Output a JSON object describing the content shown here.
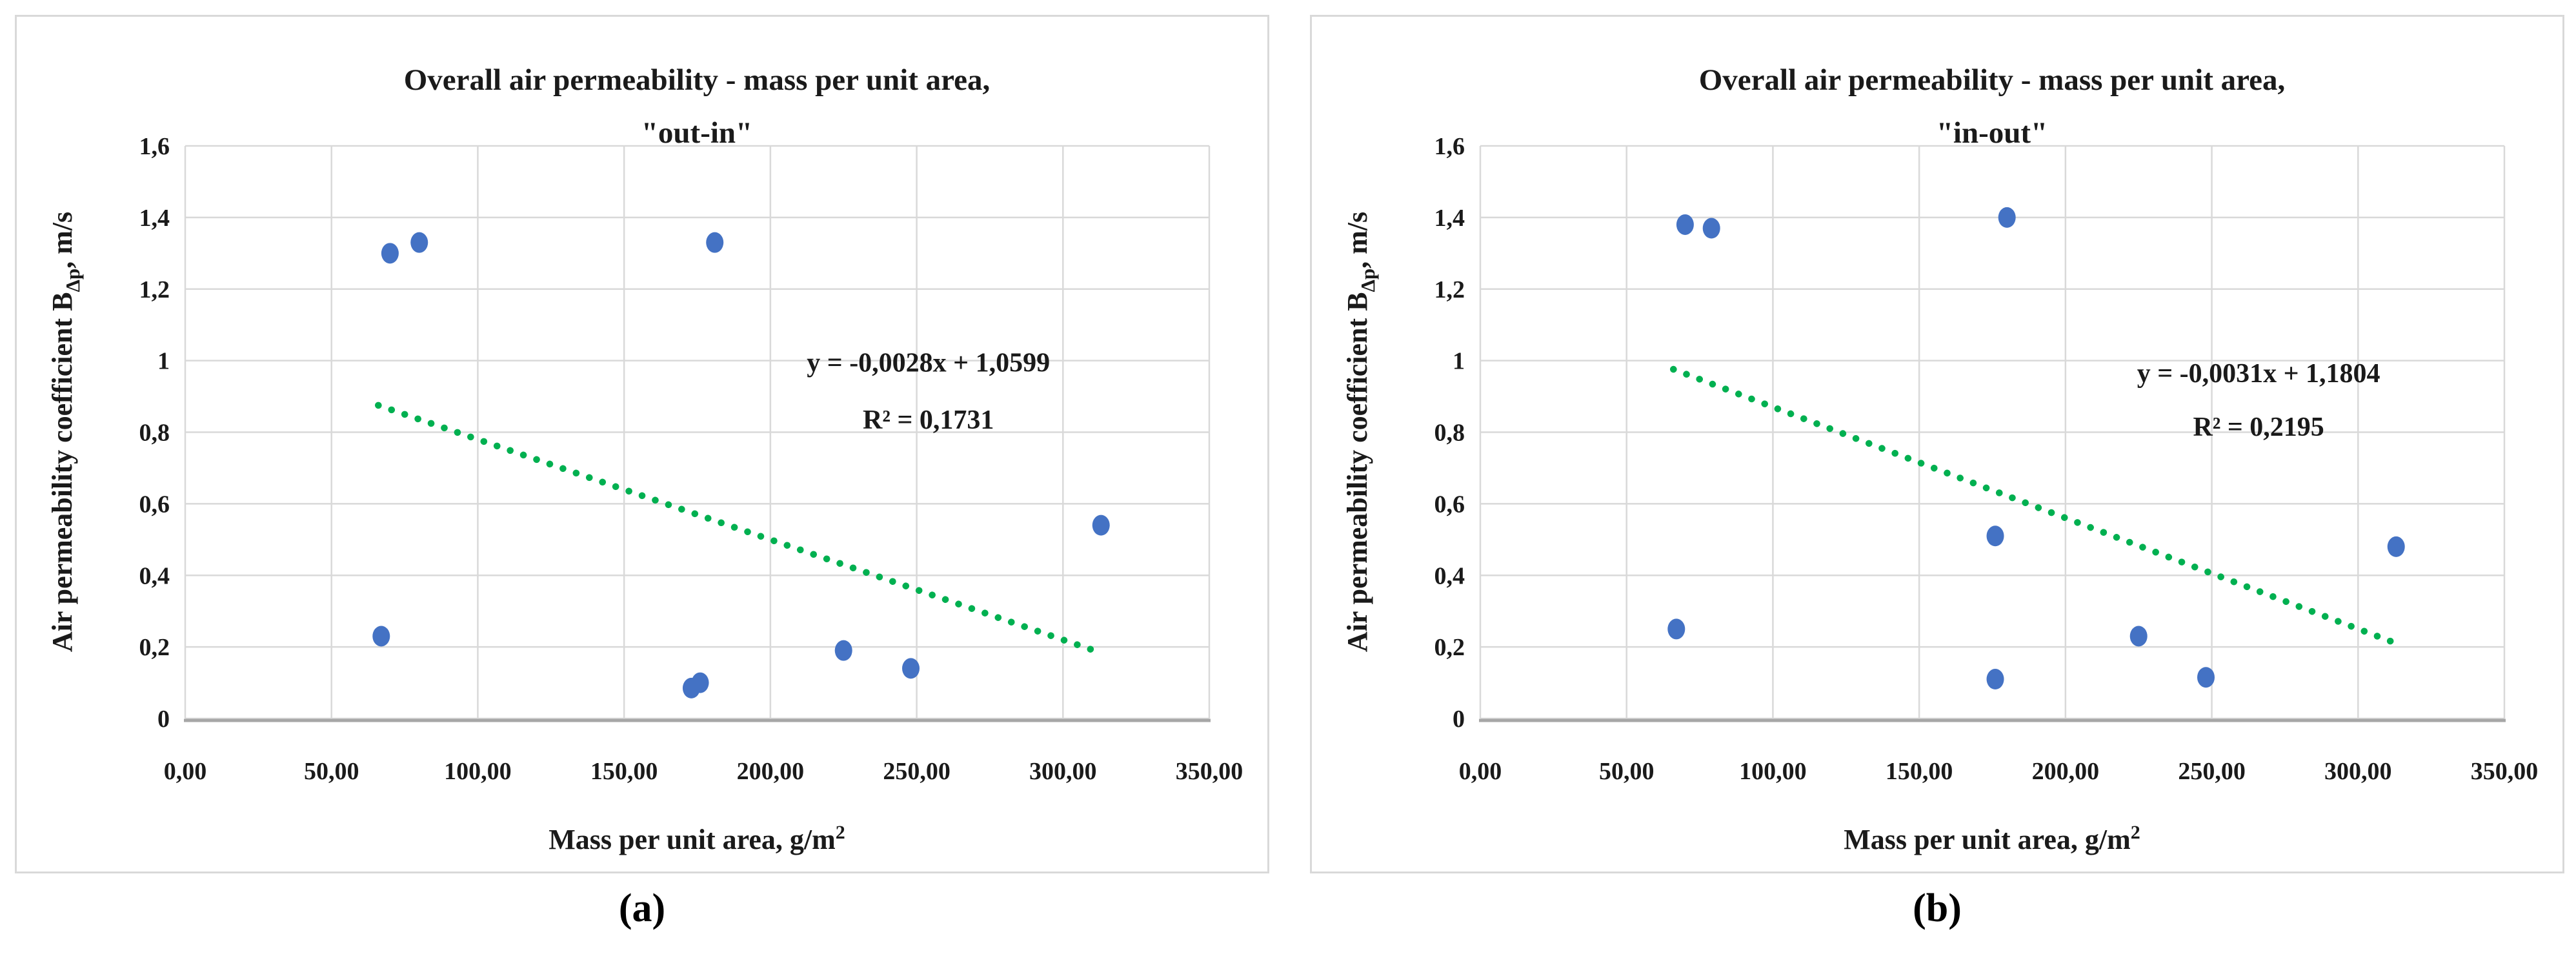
{
  "figure": {
    "background": "#FFFFFF",
    "panel_border_color": "#D9D9D9",
    "grid_color": "#D9D9D9",
    "axis_line_color": "#A6A6A6",
    "text_color": "#1A1A1A"
  },
  "captions": {
    "a": "(a)",
    "b": "(b)"
  },
  "chart_data": [
    {
      "panel": "a",
      "type": "scatter",
      "title": "Overall air permeability - mass per unit area,",
      "subtitle": "\"out-in\"",
      "xlabel_main": "Mass per unit area, g/m",
      "xlabel_sup": "2",
      "ylabel_prefix": "Air permeability coefficient B",
      "ylabel_sub": "Δp",
      "ylabel_suffix": ", m/s",
      "xlim": [
        0,
        350
      ],
      "ylim": [
        0,
        1.6
      ],
      "x_tick_step": 50,
      "y_tick_step": 0.2,
      "x_tick_labels": [
        "0,00",
        "50,00",
        "100,00",
        "150,00",
        "200,00",
        "250,00",
        "300,00",
        "350,00"
      ],
      "y_tick_labels": [
        "0",
        "0,2",
        "0,4",
        "0,6",
        "0,8",
        "1",
        "1,2",
        "1,4",
        "1,6"
      ],
      "grid": true,
      "legend": "none",
      "marker_color": "#4472C4",
      "points": [
        [
          70,
          1.3
        ],
        [
          80,
          1.33
        ],
        [
          181,
          1.33
        ],
        [
          313,
          0.54
        ],
        [
          67,
          0.23
        ],
        [
          225,
          0.19
        ],
        [
          248,
          0.14
        ],
        [
          173,
          0.085
        ],
        [
          176,
          0.1
        ]
      ],
      "trendline": {
        "equation_label": "y = -0,0028x + 1,0599",
        "r2_label": "R² = 0,1731",
        "slope": -0.0028,
        "intercept": 1.0599,
        "x_start": 66,
        "x_end": 312,
        "style": "dotted",
        "color": "#00B050",
        "label_x": 254,
        "label_y1": 0.97,
        "label_y2": 0.81
      }
    },
    {
      "panel": "b",
      "type": "scatter",
      "title": "Overall air permeability - mass per unit area,",
      "subtitle": "\"in-out\"",
      "xlabel_main": "Mass per unit area, g/m",
      "xlabel_sup": "2",
      "ylabel_prefix": "Air permeability coefficient B",
      "ylabel_sub": "Δp",
      "ylabel_suffix": ", m/s",
      "xlim": [
        0,
        350
      ],
      "ylim": [
        0,
        1.6
      ],
      "x_tick_step": 50,
      "y_tick_step": 0.2,
      "x_tick_labels": [
        "0,00",
        "50,00",
        "100,00",
        "150,00",
        "200,00",
        "250,00",
        "300,00",
        "350,00"
      ],
      "y_tick_labels": [
        "0",
        "0,2",
        "0,4",
        "0,6",
        "0,8",
        "1",
        "1,2",
        "1,4",
        "1,6"
      ],
      "grid": true,
      "legend": "none",
      "marker_color": "#4472C4",
      "points": [
        [
          70,
          1.38
        ],
        [
          79,
          1.37
        ],
        [
          180,
          1.4
        ],
        [
          67,
          0.25
        ],
        [
          176,
          0.51
        ],
        [
          225,
          0.23
        ],
        [
          313,
          0.48
        ],
        [
          176,
          0.11
        ],
        [
          248,
          0.115
        ]
      ],
      "trendline": {
        "equation_label": "y = -0,0031x + 1,1804",
        "r2_label": "R² = 0,2195",
        "slope": -0.0031,
        "intercept": 1.1804,
        "x_start": 66,
        "x_end": 312,
        "style": "dotted",
        "color": "#00B050",
        "label_x": 266,
        "label_y1": 0.94,
        "label_y2": 0.79
      }
    }
  ]
}
